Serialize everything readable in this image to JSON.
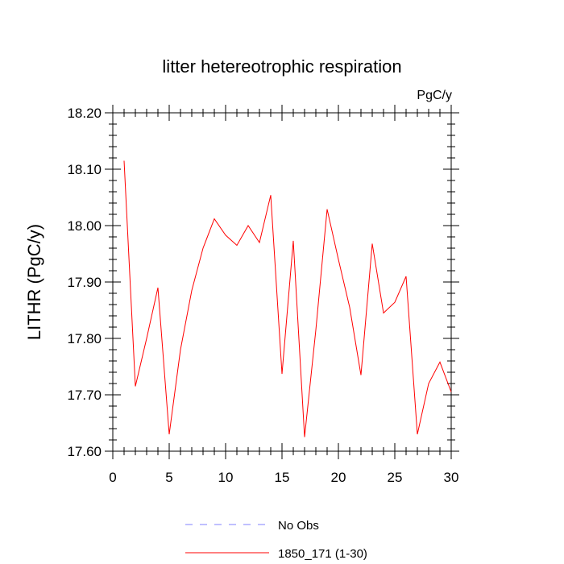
{
  "chart_data": {
    "type": "line",
    "title": "litter hetereotrophic respiration",
    "units_label": "PgC/y",
    "ylabel": "LITHR  (PgC/y)",
    "xlabel": "",
    "xlim": [
      0,
      30
    ],
    "ylim": [
      17.6,
      18.2
    ],
    "x_ticks": [
      0,
      5,
      10,
      15,
      20,
      25,
      30
    ],
    "y_ticks": [
      17.6,
      17.7,
      17.8,
      17.9,
      18.0,
      18.1,
      18.2
    ],
    "y_tick_labels": [
      "17.60",
      "17.70",
      "17.80",
      "17.90",
      "18.00",
      "18.10",
      "18.20"
    ],
    "grid": false,
    "legend_position": "bottom",
    "colors": {
      "series": "#ff0000",
      "obs": "#8080ff"
    },
    "legend": [
      {
        "label": "No Obs",
        "style": "dashed",
        "color": "#8080ff"
      },
      {
        "label": "1850_171 (1-30)",
        "style": "solid",
        "color": "#ff0000"
      }
    ],
    "series": [
      {
        "name": "1850_171 (1-30)",
        "x": [
          1,
          2,
          3,
          4,
          5,
          6,
          7,
          8,
          9,
          10,
          11,
          12,
          13,
          14,
          15,
          16,
          17,
          18,
          19,
          20,
          21,
          22,
          23,
          24,
          25,
          26,
          27,
          28,
          29,
          30
        ],
        "values": [
          18.115,
          17.715,
          17.8,
          17.89,
          17.63,
          17.78,
          17.885,
          17.96,
          18.012,
          17.983,
          17.965,
          18.0,
          17.97,
          18.054,
          17.737,
          17.973,
          17.625,
          17.815,
          18.029,
          17.94,
          17.855,
          17.735,
          17.968,
          17.845,
          17.864,
          17.91,
          17.63,
          17.72,
          17.758,
          17.705
        ]
      }
    ]
  }
}
